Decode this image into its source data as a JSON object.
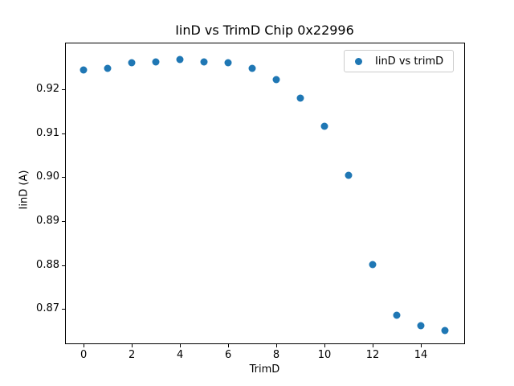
{
  "chart_data": {
    "type": "scatter",
    "title": "IinD vs TrimD Chip 0x22996",
    "xlabel": "TrimD",
    "ylabel": "IinD (A)",
    "legend_label": "IinD vs trimD",
    "legend_position": "upper right",
    "x": [
      0,
      1,
      2,
      3,
      4,
      5,
      6,
      7,
      8,
      9,
      10,
      11,
      12,
      13,
      14,
      15
    ],
    "y": [
      0.9243,
      0.9248,
      0.926,
      0.9263,
      0.9267,
      0.9262,
      0.926,
      0.9248,
      0.9221,
      0.918,
      0.9115,
      0.9004,
      0.8801,
      0.8687,
      0.8662,
      0.8652
    ],
    "xticks": [
      0,
      2,
      4,
      6,
      8,
      10,
      12,
      14
    ],
    "yticks": [
      0.87,
      0.88,
      0.89,
      0.9,
      0.91,
      0.92
    ],
    "xlim": [
      -0.77,
      15.8
    ],
    "ylim": [
      0.8623,
      0.9305
    ],
    "grid": false,
    "marker": "circle",
    "marker_color": "#1f77b4",
    "background_color": "#ffffff",
    "text_color": "#000000",
    "legend_border_color": "#cccccc"
  }
}
